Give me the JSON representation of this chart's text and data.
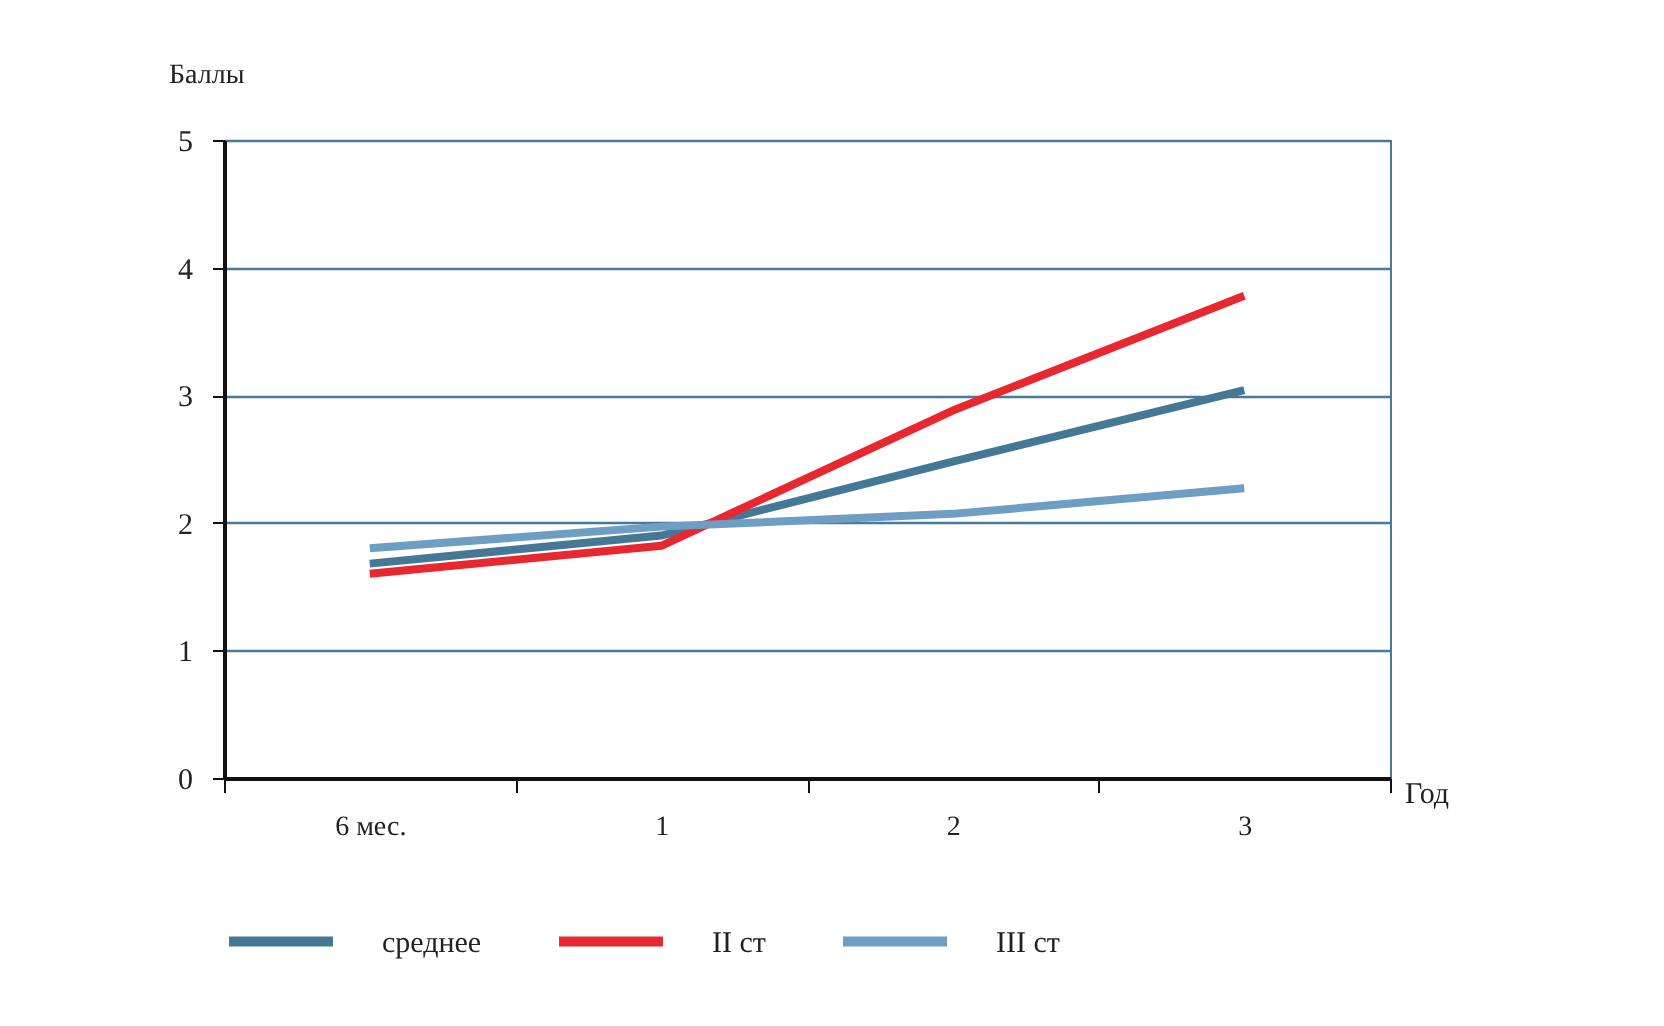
{
  "chart_data": {
    "type": "line",
    "ylabel": "Баллы",
    "xlabel": "Год",
    "categories": [
      "6 мес.",
      "1",
      "2",
      "3"
    ],
    "series": [
      {
        "name": "среднее",
        "color": "#457894",
        "values": [
          1.68,
          1.9,
          2.48,
          3.04
        ]
      },
      {
        "name": "II ст",
        "color": "#e8272f",
        "values": [
          1.6,
          1.82,
          2.88,
          3.78
        ]
      },
      {
        "name": "III ст",
        "color": "#6e9ec4",
        "values": [
          1.8,
          1.97,
          2.07,
          2.27
        ]
      }
    ],
    "ylim": [
      0,
      5
    ],
    "yticks": [
      0,
      1,
      2,
      3,
      4,
      5
    ],
    "grid": "y",
    "legend": "bottom",
    "line_style": "solid"
  }
}
